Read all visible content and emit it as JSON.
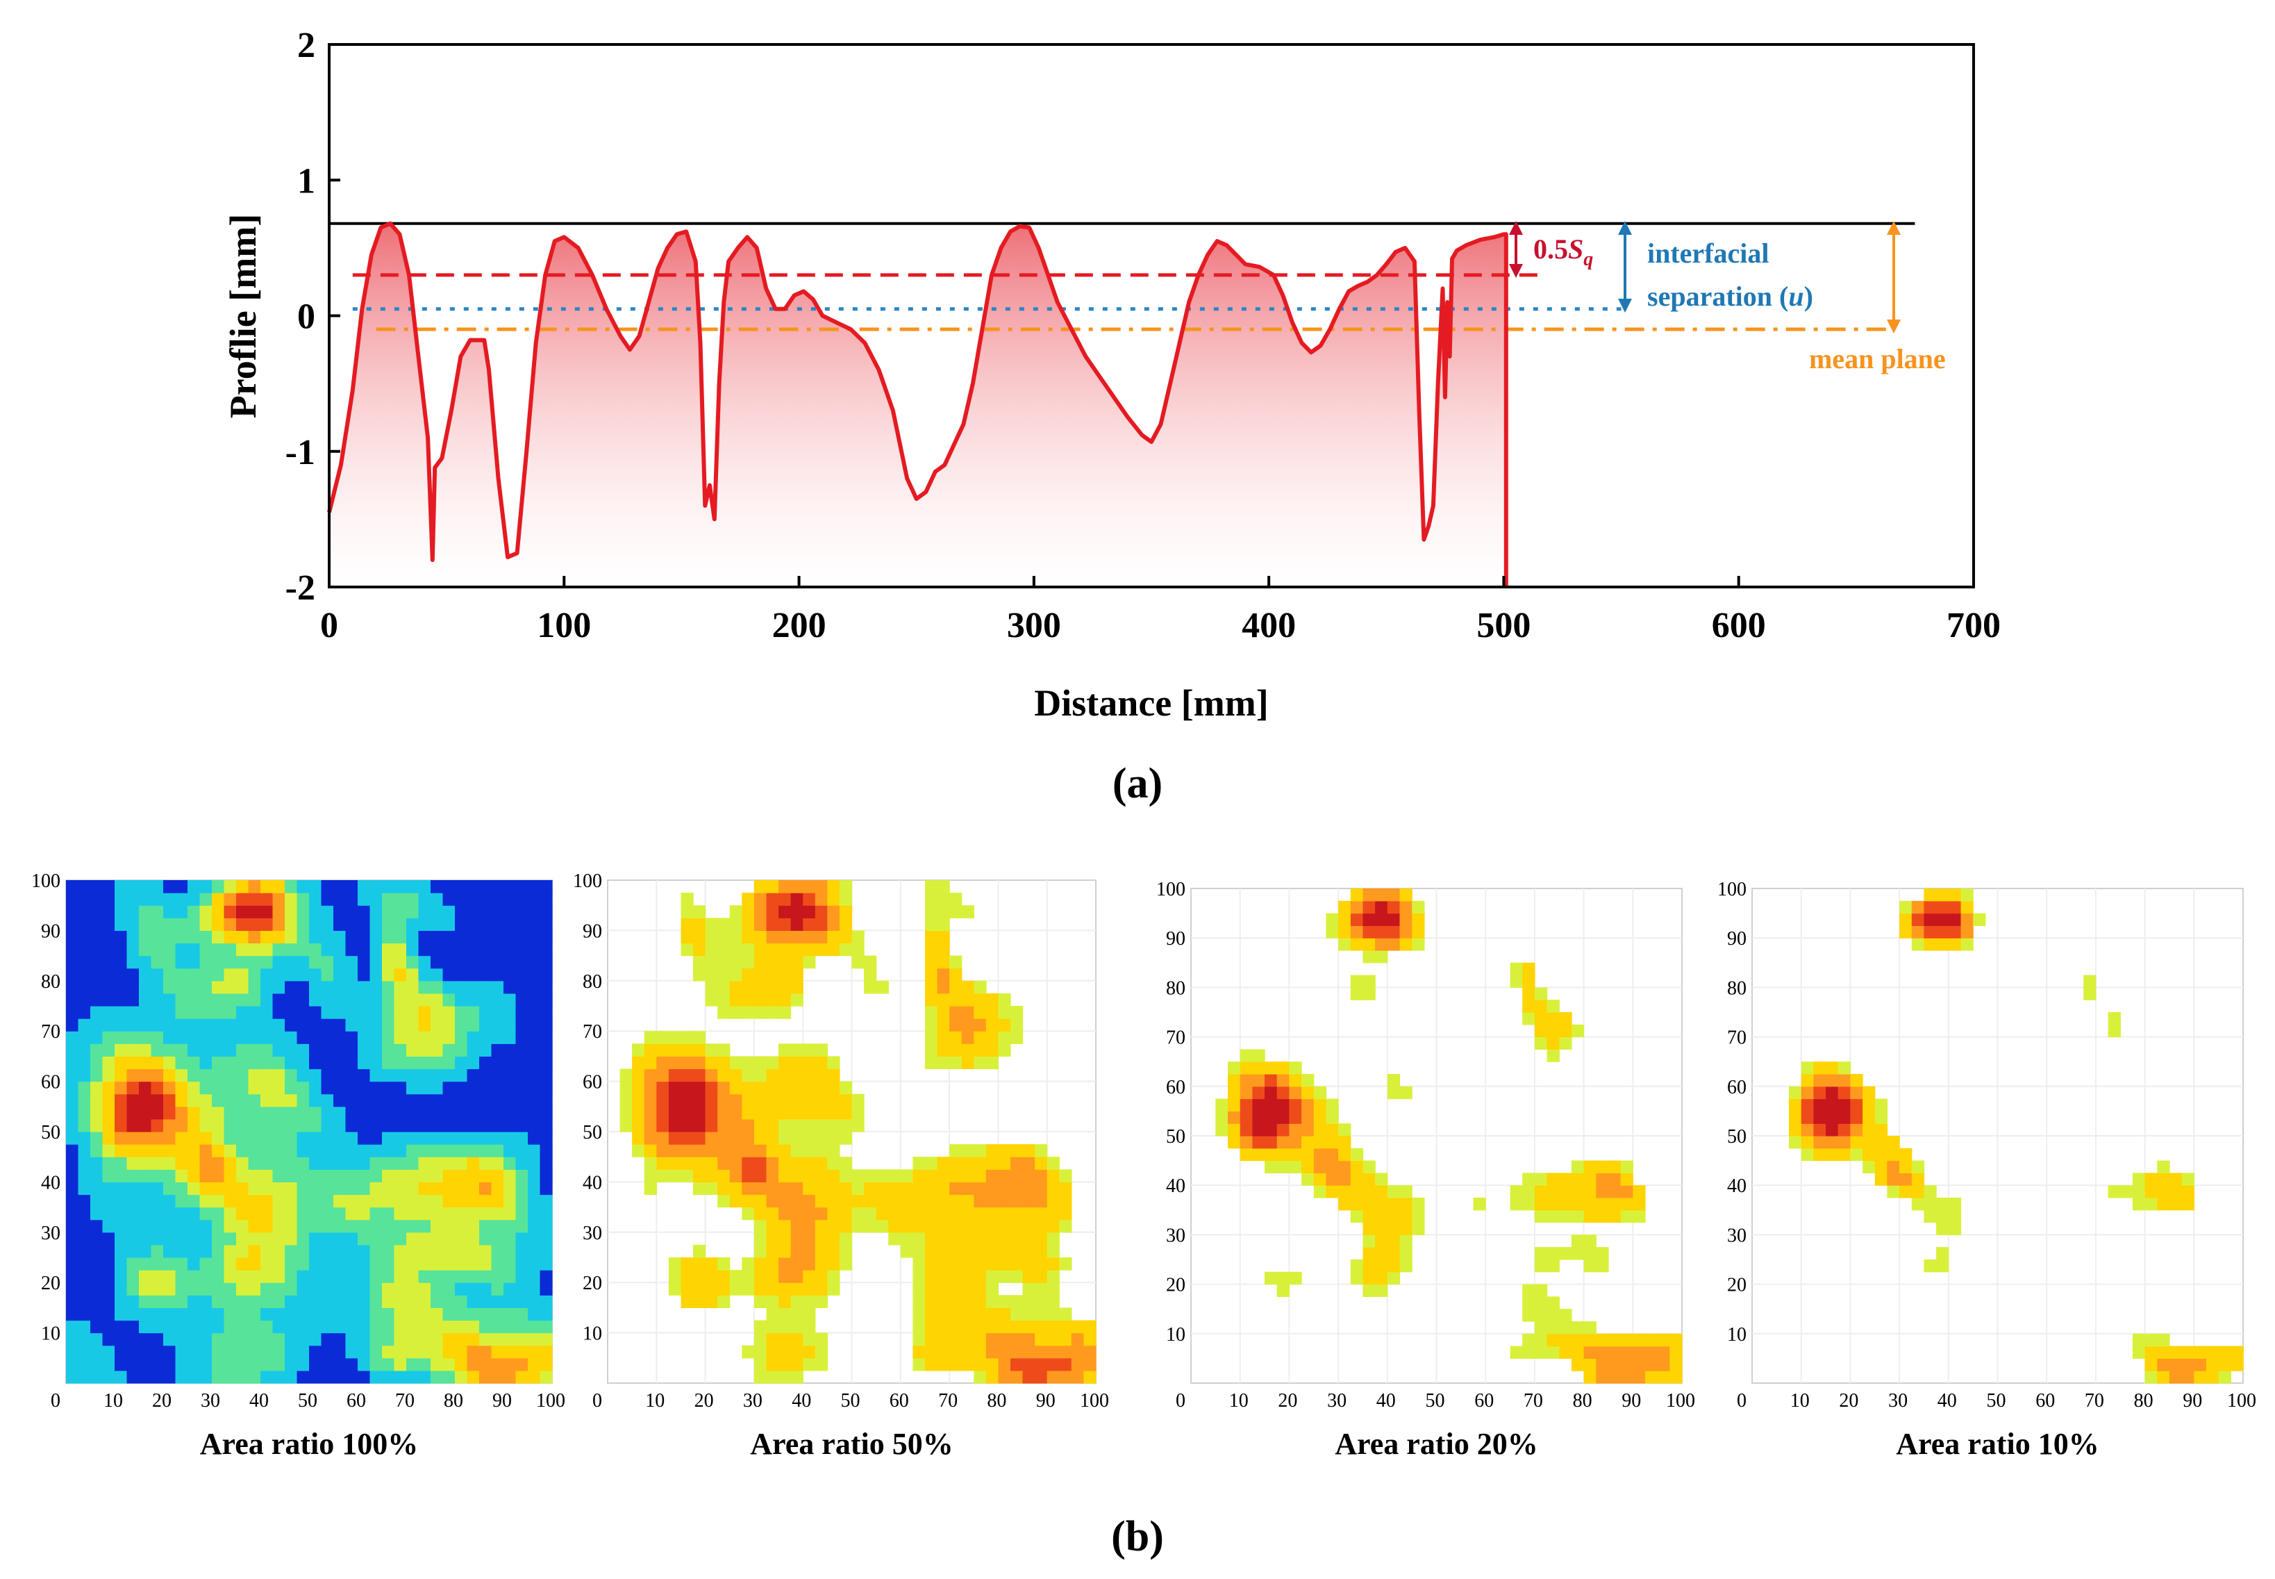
{
  "chart_data": [
    {
      "type": "line",
      "caption": "(a)",
      "xlabel": "Distance [mm]",
      "ylabel": "Proflie [mm]",
      "xlim": [
        0,
        700
      ],
      "ylim": [
        -2,
        2
      ],
      "xticks": [
        0,
        100,
        200,
        300,
        400,
        500,
        600,
        700
      ],
      "yticks": [
        2,
        1,
        0,
        -1,
        -2
      ],
      "series": [
        {
          "name": "profile",
          "color": "#e41b22",
          "x": [
            0,
            5,
            10,
            14,
            18,
            22,
            26,
            30,
            34,
            38,
            42,
            44,
            45,
            48,
            52,
            56,
            60,
            66,
            68,
            72,
            76,
            80,
            84,
            88,
            92,
            96,
            100,
            106,
            112,
            118,
            124,
            128,
            132,
            136,
            140,
            144,
            148,
            152,
            156,
            158,
            160,
            162,
            164,
            166,
            168,
            170,
            174,
            178,
            182,
            186,
            190,
            194,
            198,
            202,
            206,
            210,
            216,
            222,
            228,
            234,
            240,
            246,
            250,
            254,
            258,
            262,
            266,
            270,
            274,
            278,
            282,
            286,
            290,
            294,
            298,
            302,
            306,
            310,
            316,
            322,
            328,
            334,
            340,
            346,
            350,
            354,
            358,
            362,
            366,
            370,
            374,
            378,
            382,
            386,
            390,
            396,
            402,
            406,
            410,
            414,
            418,
            422,
            426,
            430,
            434,
            438,
            442,
            446,
            450,
            454,
            458,
            462,
            464,
            466,
            468,
            470,
            472,
            474,
            475,
            476,
            477,
            478,
            480,
            484,
            490,
            496,
            500,
            501,
            501
          ],
          "y": [
            -1.45,
            -1.1,
            -0.55,
            0.05,
            0.45,
            0.65,
            0.68,
            0.6,
            0.3,
            -0.3,
            -0.9,
            -1.8,
            -1.12,
            -1.05,
            -0.7,
            -0.3,
            -0.18,
            -0.18,
            -0.4,
            -1.2,
            -1.78,
            -1.75,
            -1.0,
            -0.2,
            0.3,
            0.55,
            0.58,
            0.5,
            0.3,
            0.05,
            -0.15,
            -0.25,
            -0.15,
            0.1,
            0.35,
            0.5,
            0.6,
            0.62,
            0.4,
            -0.2,
            -1.4,
            -1.25,
            -1.5,
            -0.5,
            0.1,
            0.4,
            0.5,
            0.58,
            0.5,
            0.2,
            0.05,
            0.05,
            0.15,
            0.18,
            0.12,
            0.0,
            -0.05,
            -0.1,
            -0.2,
            -0.4,
            -0.7,
            -1.2,
            -1.35,
            -1.3,
            -1.15,
            -1.1,
            -0.95,
            -0.8,
            -0.5,
            -0.1,
            0.3,
            0.5,
            0.62,
            0.66,
            0.65,
            0.5,
            0.3,
            0.1,
            -0.1,
            -0.3,
            -0.45,
            -0.6,
            -0.75,
            -0.88,
            -0.93,
            -0.8,
            -0.5,
            -0.2,
            0.1,
            0.3,
            0.45,
            0.55,
            0.52,
            0.45,
            0.38,
            0.36,
            0.3,
            0.15,
            -0.05,
            -0.2,
            -0.27,
            -0.22,
            -0.1,
            0.05,
            0.18,
            0.22,
            0.25,
            0.3,
            0.38,
            0.47,
            0.5,
            0.4,
            -0.7,
            -1.65,
            -1.55,
            -1.4,
            -0.5,
            0.2,
            -0.6,
            0.1,
            -0.3,
            0.42,
            0.48,
            0.52,
            0.56,
            0.58,
            0.6,
            0.6,
            -2.0
          ]
        }
      ],
      "reference_lines": [
        {
          "name": "peak line",
          "y": 0.68,
          "color": "#000000",
          "style": "solid",
          "x_from": 0,
          "x_to": 675
        },
        {
          "name": "0.5Sq level",
          "y": 0.3,
          "color": "#e41b22",
          "style": "dashed",
          "x_from": 10,
          "x_to": 515
        },
        {
          "name": "interfacial separation",
          "y": 0.05,
          "color": "#2b86c5",
          "style": "dotted",
          "x_from": 10,
          "x_to": 550
        },
        {
          "name": "mean plane",
          "y": -0.1,
          "color": "#f7931e",
          "style": "dashdot",
          "x_from": 20,
          "x_to": 665
        }
      ],
      "annotations": {
        "sq_label": "0.5Sq",
        "sq_prefix": "0.5",
        "sq_symbol": "S",
        "sq_sub": "q",
        "sep_line1": "interfacial",
        "sep_line2_prefix": "separation (",
        "sep_var": "u",
        "sep_line2_suffix": ")",
        "mean_plane": "mean plane",
        "sq_color": "#c8102e",
        "sep_color": "#1f78b4",
        "mean_color": "#f7931e"
      }
    },
    {
      "type": "heatmap",
      "caption": "(b)",
      "xticks": [
        10,
        20,
        30,
        40,
        50,
        60,
        70,
        80,
        90,
        100
      ],
      "yticks": [
        10,
        20,
        30,
        40,
        50,
        60,
        70,
        80,
        90,
        100
      ],
      "origin_label": "0",
      "panels": [
        {
          "title": "Area ratio 100%",
          "area_ratio": 1.0
        },
        {
          "title": "Area ratio 50%",
          "area_ratio": 0.5
        },
        {
          "title": "Area ratio 20%",
          "area_ratio": 0.2
        },
        {
          "title": "Area ratio 10%",
          "area_ratio": 0.1
        }
      ],
      "colorscale": [
        "#0b2bd6",
        "#18c9e6",
        "#57e39a",
        "#d9f03a",
        "#ffd400",
        "#ff9a1e",
        "#ee4b1a",
        "#c8161d"
      ]
    }
  ]
}
